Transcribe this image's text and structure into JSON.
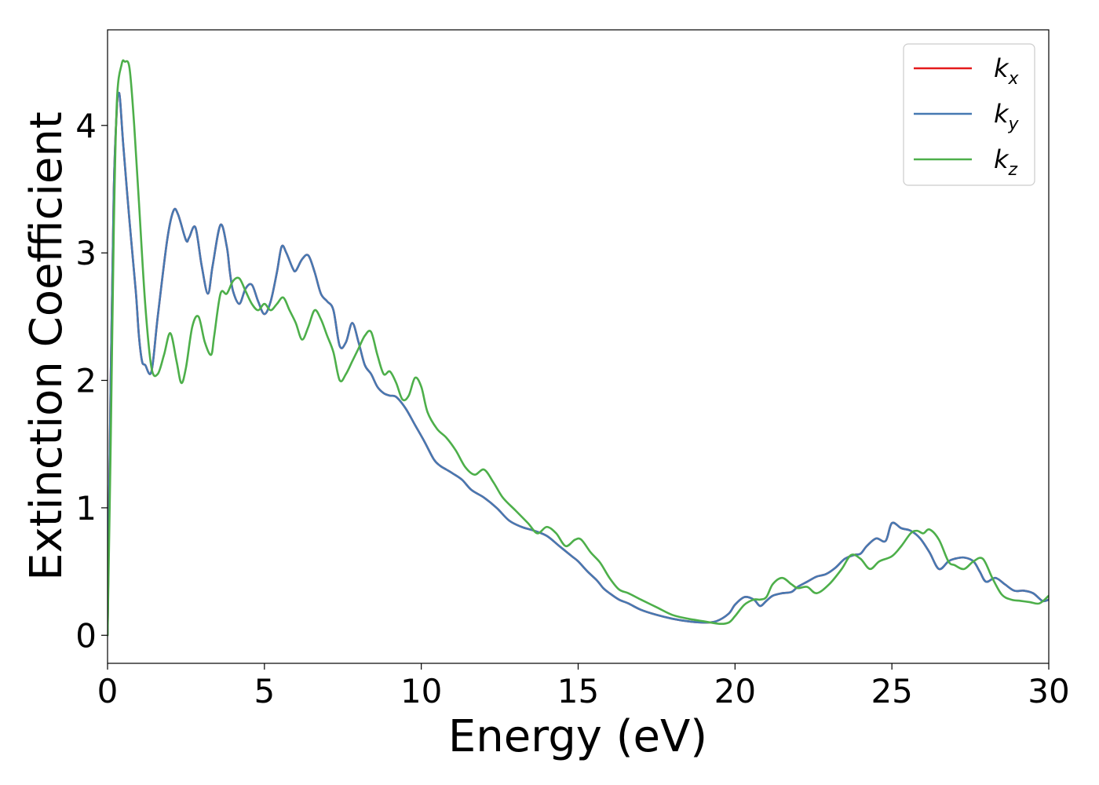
{
  "chart_data": {
    "type": "line",
    "title": "",
    "xlabel": "Energy (eV)",
    "ylabel": "Extinction Coefficient",
    "xlim": [
      0,
      30
    ],
    "ylim": [
      -0.22,
      4.75
    ],
    "xticks": [
      0,
      5,
      10,
      15,
      20,
      25,
      30
    ],
    "yticks": [
      0,
      1,
      2,
      3,
      4
    ],
    "grid": false,
    "legend_position": "top-right",
    "series": [
      {
        "name": "k_x",
        "legend_base": "k",
        "legend_sub": "x",
        "color": "#e41a1c",
        "x": [
          0,
          0.1,
          0.2,
          0.3,
          0.35,
          0.4,
          0.5,
          0.7,
          0.9,
          1.0,
          1.1,
          1.2,
          1.4,
          1.6,
          1.9,
          2.1,
          2.25,
          2.5,
          2.6,
          2.8,
          3.0,
          3.2,
          3.35,
          3.6,
          3.8,
          3.9,
          4.0,
          4.2,
          4.4,
          4.6,
          4.8,
          5.0,
          5.2,
          5.4,
          5.55,
          5.7,
          5.9,
          6.0,
          6.2,
          6.4,
          6.6,
          6.8,
          7.0,
          7.2,
          7.4,
          7.6,
          7.8,
          8.0,
          8.2,
          8.4,
          8.6,
          8.8,
          9.0,
          9.2,
          9.5,
          9.8,
          10.1,
          10.4,
          10.6,
          10.8,
          11.0,
          11.3,
          11.6,
          12.0,
          12.4,
          12.8,
          13.2,
          13.6,
          14.0,
          14.4,
          14.8,
          15.0,
          15.3,
          15.6,
          15.8,
          16.0,
          16.3,
          16.6,
          17.0,
          17.5,
          18.0,
          18.5,
          19.0,
          19.4,
          19.8,
          20.0,
          20.3,
          20.6,
          20.8,
          21.0,
          21.2,
          21.5,
          21.8,
          22.0,
          22.3,
          22.6,
          22.9,
          23.2,
          23.5,
          23.8,
          24.0,
          24.2,
          24.5,
          24.8,
          25.0,
          25.3,
          25.6,
          25.9,
          26.2,
          26.5,
          26.8,
          27.0,
          27.3,
          27.6,
          27.8,
          28.0,
          28.3,
          28.6,
          28.9,
          29.2,
          29.5,
          29.8,
          30.0
        ],
        "y": [
          0,
          2.0,
          3.5,
          4.15,
          4.25,
          4.2,
          3.85,
          3.25,
          2.7,
          2.35,
          2.15,
          2.12,
          2.07,
          2.5,
          3.1,
          3.33,
          3.3,
          3.1,
          3.12,
          3.2,
          2.9,
          2.68,
          2.9,
          3.22,
          3.05,
          2.85,
          2.7,
          2.6,
          2.72,
          2.75,
          2.62,
          2.52,
          2.62,
          2.85,
          3.05,
          3.0,
          2.88,
          2.86,
          2.95,
          2.98,
          2.85,
          2.68,
          2.62,
          2.55,
          2.27,
          2.3,
          2.45,
          2.3,
          2.12,
          2.05,
          1.95,
          1.9,
          1.88,
          1.87,
          1.78,
          1.65,
          1.52,
          1.38,
          1.33,
          1.3,
          1.27,
          1.22,
          1.14,
          1.08,
          1.0,
          0.9,
          0.85,
          0.82,
          0.78,
          0.7,
          0.62,
          0.58,
          0.5,
          0.43,
          0.37,
          0.33,
          0.28,
          0.25,
          0.2,
          0.16,
          0.13,
          0.11,
          0.1,
          0.11,
          0.17,
          0.24,
          0.3,
          0.28,
          0.23,
          0.27,
          0.31,
          0.33,
          0.34,
          0.38,
          0.42,
          0.46,
          0.48,
          0.53,
          0.6,
          0.63,
          0.64,
          0.7,
          0.76,
          0.74,
          0.88,
          0.84,
          0.82,
          0.76,
          0.65,
          0.52,
          0.58,
          0.6,
          0.61,
          0.58,
          0.5,
          0.42,
          0.45,
          0.4,
          0.35,
          0.35,
          0.33,
          0.27,
          0.28
        ]
      },
      {
        "name": "k_y",
        "legend_base": "k",
        "legend_sub": "y",
        "color": "#4679b2",
        "x": [
          0,
          0.1,
          0.2,
          0.3,
          0.35,
          0.4,
          0.5,
          0.7,
          0.9,
          1.0,
          1.1,
          1.2,
          1.4,
          1.6,
          1.9,
          2.1,
          2.25,
          2.5,
          2.6,
          2.8,
          3.0,
          3.2,
          3.35,
          3.6,
          3.8,
          3.9,
          4.0,
          4.2,
          4.4,
          4.6,
          4.8,
          5.0,
          5.2,
          5.4,
          5.55,
          5.7,
          5.9,
          6.0,
          6.2,
          6.4,
          6.6,
          6.8,
          7.0,
          7.2,
          7.4,
          7.6,
          7.8,
          8.0,
          8.2,
          8.4,
          8.6,
          8.8,
          9.0,
          9.2,
          9.5,
          9.8,
          10.1,
          10.4,
          10.6,
          10.8,
          11.0,
          11.3,
          11.6,
          12.0,
          12.4,
          12.8,
          13.2,
          13.6,
          14.0,
          14.4,
          14.8,
          15.0,
          15.3,
          15.6,
          15.8,
          16.0,
          16.3,
          16.6,
          17.0,
          17.5,
          18.0,
          18.5,
          19.0,
          19.4,
          19.8,
          20.0,
          20.3,
          20.6,
          20.8,
          21.0,
          21.2,
          21.5,
          21.8,
          22.0,
          22.3,
          22.6,
          22.9,
          23.2,
          23.5,
          23.8,
          24.0,
          24.2,
          24.5,
          24.8,
          25.0,
          25.3,
          25.6,
          25.9,
          26.2,
          26.5,
          26.8,
          27.0,
          27.3,
          27.6,
          27.8,
          28.0,
          28.3,
          28.6,
          28.9,
          29.2,
          29.5,
          29.8,
          30.0
        ],
        "y": [
          0,
          2.0,
          3.5,
          4.15,
          4.25,
          4.2,
          3.85,
          3.25,
          2.7,
          2.35,
          2.15,
          2.12,
          2.07,
          2.5,
          3.1,
          3.33,
          3.3,
          3.1,
          3.12,
          3.2,
          2.9,
          2.68,
          2.9,
          3.22,
          3.05,
          2.85,
          2.7,
          2.6,
          2.72,
          2.75,
          2.62,
          2.52,
          2.62,
          2.85,
          3.05,
          3.0,
          2.88,
          2.86,
          2.95,
          2.98,
          2.85,
          2.68,
          2.62,
          2.55,
          2.27,
          2.3,
          2.45,
          2.3,
          2.12,
          2.05,
          1.95,
          1.9,
          1.88,
          1.87,
          1.78,
          1.65,
          1.52,
          1.38,
          1.33,
          1.3,
          1.27,
          1.22,
          1.14,
          1.08,
          1.0,
          0.9,
          0.85,
          0.82,
          0.78,
          0.7,
          0.62,
          0.58,
          0.5,
          0.43,
          0.37,
          0.33,
          0.28,
          0.25,
          0.2,
          0.16,
          0.13,
          0.11,
          0.1,
          0.11,
          0.17,
          0.24,
          0.3,
          0.28,
          0.23,
          0.27,
          0.31,
          0.33,
          0.34,
          0.38,
          0.42,
          0.46,
          0.48,
          0.53,
          0.6,
          0.63,
          0.64,
          0.7,
          0.76,
          0.74,
          0.88,
          0.84,
          0.82,
          0.76,
          0.65,
          0.52,
          0.58,
          0.6,
          0.61,
          0.58,
          0.5,
          0.42,
          0.45,
          0.4,
          0.35,
          0.35,
          0.33,
          0.27,
          0.28
        ]
      },
      {
        "name": "k_z",
        "legend_base": "k",
        "legend_sub": "z",
        "color": "#4daf4a",
        "x": [
          0,
          0.1,
          0.2,
          0.3,
          0.45,
          0.55,
          0.7,
          0.85,
          1.0,
          1.2,
          1.4,
          1.6,
          1.8,
          2.0,
          2.2,
          2.35,
          2.5,
          2.7,
          2.9,
          3.1,
          3.3,
          3.4,
          3.6,
          3.8,
          4.0,
          4.2,
          4.4,
          4.6,
          4.8,
          5.0,
          5.2,
          5.4,
          5.6,
          5.8,
          6.0,
          6.2,
          6.4,
          6.6,
          6.8,
          7.0,
          7.2,
          7.4,
          7.6,
          7.8,
          8.0,
          8.2,
          8.4,
          8.6,
          8.8,
          9.0,
          9.2,
          9.4,
          9.6,
          9.8,
          10.0,
          10.2,
          10.5,
          10.8,
          11.1,
          11.4,
          11.7,
          12.0,
          12.3,
          12.6,
          13.0,
          13.4,
          13.7,
          14.0,
          14.3,
          14.6,
          14.9,
          15.1,
          15.4,
          15.7,
          16.0,
          16.3,
          16.6,
          17.0,
          17.5,
          18.0,
          18.5,
          19.0,
          19.5,
          19.8,
          20.0,
          20.3,
          20.6,
          20.8,
          21.0,
          21.2,
          21.5,
          21.8,
          22.0,
          22.3,
          22.6,
          23.0,
          23.4,
          23.7,
          24.0,
          24.3,
          24.6,
          25.0,
          25.3,
          25.6,
          25.8,
          26.0,
          26.2,
          26.5,
          26.8,
          27.0,
          27.3,
          27.6,
          27.9,
          28.2,
          28.5,
          28.8,
          29.1,
          29.4,
          29.7,
          30.0
        ],
        "y": [
          0,
          1.5,
          3.2,
          4.2,
          4.48,
          4.5,
          4.45,
          4.0,
          3.4,
          2.6,
          2.1,
          2.05,
          2.2,
          2.37,
          2.15,
          1.98,
          2.1,
          2.42,
          2.5,
          2.3,
          2.2,
          2.35,
          2.68,
          2.68,
          2.78,
          2.8,
          2.7,
          2.6,
          2.55,
          2.6,
          2.55,
          2.6,
          2.65,
          2.55,
          2.45,
          2.32,
          2.42,
          2.55,
          2.48,
          2.35,
          2.22,
          2.0,
          2.05,
          2.15,
          2.25,
          2.35,
          2.38,
          2.2,
          2.05,
          2.07,
          1.98,
          1.85,
          1.88,
          2.02,
          1.95,
          1.75,
          1.62,
          1.55,
          1.45,
          1.32,
          1.26,
          1.3,
          1.2,
          1.08,
          0.98,
          0.88,
          0.8,
          0.85,
          0.8,
          0.7,
          0.75,
          0.75,
          0.65,
          0.57,
          0.45,
          0.36,
          0.33,
          0.28,
          0.22,
          0.16,
          0.13,
          0.11,
          0.09,
          0.1,
          0.15,
          0.24,
          0.28,
          0.28,
          0.3,
          0.4,
          0.45,
          0.4,
          0.37,
          0.38,
          0.33,
          0.4,
          0.52,
          0.63,
          0.6,
          0.52,
          0.58,
          0.62,
          0.7,
          0.8,
          0.82,
          0.8,
          0.83,
          0.75,
          0.58,
          0.55,
          0.52,
          0.58,
          0.6,
          0.45,
          0.32,
          0.28,
          0.27,
          0.26,
          0.25,
          0.31
        ]
      }
    ]
  }
}
